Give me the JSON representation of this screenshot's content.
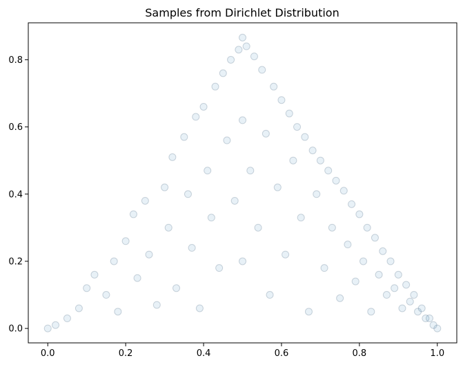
{
  "chart_data": {
    "type": "scatter",
    "title": "Samples from Dirichlet Distribution",
    "xlabel": "",
    "ylabel": "",
    "xlim": [
      -0.05,
      1.05
    ],
    "ylim": [
      -0.043,
      0.91
    ],
    "xticks": [
      {
        "value": 0.0,
        "label": "0.0"
      },
      {
        "value": 0.2,
        "label": "0.2"
      },
      {
        "value": 0.4,
        "label": "0.4"
      },
      {
        "value": 0.6,
        "label": "0.6"
      },
      {
        "value": 0.8,
        "label": "0.8"
      },
      {
        "value": 1.0,
        "label": "1.0"
      }
    ],
    "yticks": [
      {
        "value": 0.0,
        "label": "0.0"
      },
      {
        "value": 0.2,
        "label": "0.2"
      },
      {
        "value": 0.4,
        "label": "0.4"
      },
      {
        "value": 0.6,
        "label": "0.6"
      },
      {
        "value": 0.8,
        "label": "0.8"
      }
    ],
    "grid": false,
    "marker_color": "#1f77b4",
    "marker_alpha": 0.1,
    "simplex_vertices": [
      [
        0.0,
        0.0
      ],
      [
        1.0,
        0.0
      ],
      [
        0.5,
        0.866
      ]
    ],
    "points": [
      [
        0.0,
        0.0
      ],
      [
        1.0,
        0.0
      ],
      [
        0.5,
        0.866
      ],
      [
        0.02,
        0.01
      ],
      [
        0.05,
        0.03
      ],
      [
        0.08,
        0.06
      ],
      [
        0.1,
        0.12
      ],
      [
        0.12,
        0.16
      ],
      [
        0.15,
        0.1
      ],
      [
        0.17,
        0.2
      ],
      [
        0.18,
        0.05
      ],
      [
        0.2,
        0.26
      ],
      [
        0.22,
        0.34
      ],
      [
        0.23,
        0.15
      ],
      [
        0.25,
        0.38
      ],
      [
        0.26,
        0.22
      ],
      [
        0.28,
        0.07
      ],
      [
        0.3,
        0.42
      ],
      [
        0.31,
        0.3
      ],
      [
        0.32,
        0.51
      ],
      [
        0.33,
        0.12
      ],
      [
        0.35,
        0.57
      ],
      [
        0.36,
        0.4
      ],
      [
        0.37,
        0.24
      ],
      [
        0.38,
        0.63
      ],
      [
        0.39,
        0.06
      ],
      [
        0.4,
        0.66
      ],
      [
        0.41,
        0.47
      ],
      [
        0.42,
        0.33
      ],
      [
        0.43,
        0.72
      ],
      [
        0.44,
        0.18
      ],
      [
        0.45,
        0.76
      ],
      [
        0.46,
        0.56
      ],
      [
        0.47,
        0.8
      ],
      [
        0.48,
        0.38
      ],
      [
        0.49,
        0.83
      ],
      [
        0.5,
        0.62
      ],
      [
        0.5,
        0.2
      ],
      [
        0.51,
        0.84
      ],
      [
        0.52,
        0.47
      ],
      [
        0.53,
        0.81
      ],
      [
        0.54,
        0.3
      ],
      [
        0.55,
        0.77
      ],
      [
        0.56,
        0.58
      ],
      [
        0.57,
        0.1
      ],
      [
        0.58,
        0.72
      ],
      [
        0.59,
        0.42
      ],
      [
        0.6,
        0.68
      ],
      [
        0.61,
        0.22
      ],
      [
        0.62,
        0.64
      ],
      [
        0.63,
        0.5
      ],
      [
        0.64,
        0.6
      ],
      [
        0.65,
        0.33
      ],
      [
        0.66,
        0.57
      ],
      [
        0.67,
        0.05
      ],
      [
        0.68,
        0.53
      ],
      [
        0.69,
        0.4
      ],
      [
        0.7,
        0.5
      ],
      [
        0.71,
        0.18
      ],
      [
        0.72,
        0.47
      ],
      [
        0.73,
        0.3
      ],
      [
        0.74,
        0.44
      ],
      [
        0.75,
        0.09
      ],
      [
        0.76,
        0.41
      ],
      [
        0.77,
        0.25
      ],
      [
        0.78,
        0.37
      ],
      [
        0.79,
        0.14
      ],
      [
        0.8,
        0.34
      ],
      [
        0.81,
        0.2
      ],
      [
        0.82,
        0.3
      ],
      [
        0.83,
        0.05
      ],
      [
        0.84,
        0.27
      ],
      [
        0.85,
        0.16
      ],
      [
        0.86,
        0.23
      ],
      [
        0.87,
        0.1
      ],
      [
        0.88,
        0.2
      ],
      [
        0.89,
        0.12
      ],
      [
        0.9,
        0.16
      ],
      [
        0.91,
        0.06
      ],
      [
        0.92,
        0.13
      ],
      [
        0.93,
        0.08
      ],
      [
        0.94,
        0.1
      ],
      [
        0.95,
        0.05
      ],
      [
        0.96,
        0.06
      ],
      [
        0.97,
        0.03
      ],
      [
        0.98,
        0.03
      ],
      [
        0.99,
        0.01
      ]
    ]
  }
}
